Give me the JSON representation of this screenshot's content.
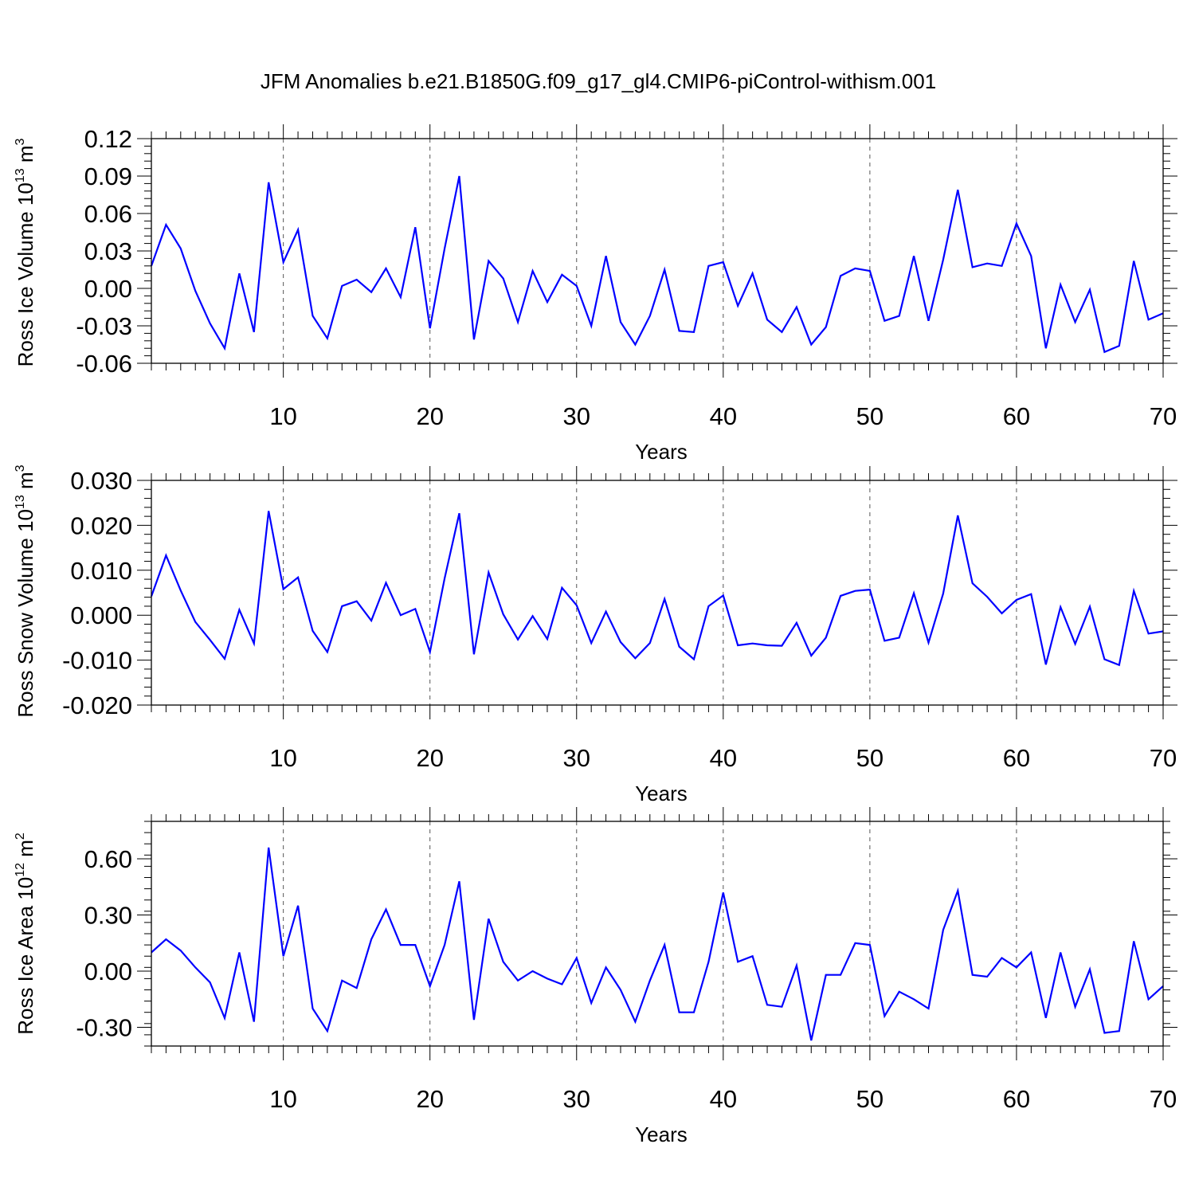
{
  "title": "JFM Anomalies b.e21.B1850G.f09_g17_gl4.CMIP6-piControl-withism.001",
  "line_color": "#0000ff",
  "chart_data": [
    {
      "type": "line",
      "ylabel": "Ross Ice Volume 10",
      "ylabel_exp": "13",
      "ylabel_unit": "m",
      "ylabel_unit_exp": "3",
      "xlabel": "Years",
      "xlim": [
        1,
        70
      ],
      "ylim": [
        -0.06,
        0.12
      ],
      "yticks": [
        -0.06,
        -0.03,
        0.0,
        0.03,
        0.06,
        0.09,
        0.12
      ],
      "yticklabels": [
        "-0.06",
        "-0.03",
        "0.00",
        "0.03",
        "0.06",
        "0.09",
        "0.12"
      ],
      "xticks": [
        10,
        20,
        30,
        40,
        50,
        60,
        70
      ],
      "xticklabels": [
        "10",
        "20",
        "30",
        "40",
        "50",
        "60",
        "70"
      ],
      "vgrid": [
        10,
        20,
        30,
        40,
        50,
        60
      ],
      "grid": "dashed vertical at major x ticks",
      "x": [
        1,
        2,
        3,
        4,
        5,
        6,
        7,
        8,
        9,
        10,
        11,
        12,
        13,
        14,
        15,
        16,
        17,
        18,
        19,
        20,
        21,
        22,
        23,
        24,
        25,
        26,
        27,
        28,
        29,
        30,
        31,
        32,
        33,
        34,
        35,
        36,
        37,
        38,
        39,
        40,
        41,
        42,
        43,
        44,
        45,
        46,
        47,
        48,
        49,
        50,
        51,
        52,
        53,
        54,
        55,
        56,
        57,
        58,
        59,
        60,
        61,
        62,
        63,
        64,
        65,
        66,
        67,
        68,
        69,
        70
      ],
      "values": [
        0.018,
        0.051,
        0.032,
        -0.002,
        -0.028,
        -0.048,
        0.012,
        -0.035,
        0.085,
        0.021,
        0.047,
        -0.022,
        -0.04,
        0.002,
        0.007,
        -0.003,
        0.016,
        -0.007,
        0.049,
        -0.032,
        0.032,
        0.09,
        -0.041,
        0.022,
        0.008,
        -0.027,
        0.014,
        -0.011,
        0.011,
        0.002,
        -0.03,
        0.026,
        -0.027,
        -0.045,
        -0.022,
        0.015,
        -0.034,
        -0.035,
        0.018,
        0.021,
        -0.014,
        0.012,
        -0.025,
        -0.035,
        -0.015,
        -0.045,
        -0.031,
        0.01,
        0.016,
        0.014,
        -0.026,
        -0.022,
        0.026,
        -0.026,
        0.023,
        0.079,
        0.017,
        0.02,
        0.018,
        0.052,
        0.026,
        -0.048,
        0.003,
        -0.027,
        -0.001,
        -0.051,
        -0.046,
        0.022,
        -0.025,
        -0.02
      ]
    },
    {
      "type": "line",
      "ylabel": "Ross Snow Volume 10",
      "ylabel_exp": "13",
      "ylabel_unit": "m",
      "ylabel_unit_exp": "3",
      "xlabel": "Years",
      "xlim": [
        1,
        70
      ],
      "ylim": [
        -0.02,
        0.03
      ],
      "yticks": [
        -0.02,
        -0.01,
        0.0,
        0.01,
        0.02,
        0.03
      ],
      "yticklabels": [
        "-0.020",
        "-0.010",
        "0.000",
        "0.010",
        "0.020",
        "0.030"
      ],
      "xticks": [
        10,
        20,
        30,
        40,
        50,
        60,
        70
      ],
      "xticklabels": [
        "10",
        "20",
        "30",
        "40",
        "50",
        "60",
        "70"
      ],
      "vgrid": [
        10,
        20,
        30,
        40,
        50,
        60
      ],
      "grid": "dashed vertical at major x ticks",
      "x": [
        1,
        2,
        3,
        4,
        5,
        6,
        7,
        8,
        9,
        10,
        11,
        12,
        13,
        14,
        15,
        16,
        17,
        18,
        19,
        20,
        21,
        22,
        23,
        24,
        25,
        26,
        27,
        28,
        29,
        30,
        31,
        32,
        33,
        34,
        35,
        36,
        37,
        38,
        39,
        40,
        41,
        42,
        43,
        44,
        45,
        46,
        47,
        48,
        49,
        50,
        51,
        52,
        53,
        54,
        55,
        56,
        57,
        58,
        59,
        60,
        61,
        62,
        63,
        64,
        65,
        66,
        67,
        68,
        69,
        70
      ],
      "values": [
        0.0042,
        0.0133,
        0.0055,
        -0.0015,
        -0.0055,
        -0.0097,
        0.0012,
        -0.0063,
        0.0232,
        0.0058,
        0.0084,
        -0.0035,
        -0.0082,
        0.002,
        0.0031,
        -0.0012,
        0.0072,
        0.0,
        0.0014,
        -0.0082,
        0.0082,
        0.0227,
        -0.0087,
        0.0095,
        0.0002,
        -0.0054,
        -0.0002,
        -0.0053,
        0.0061,
        0.0022,
        -0.0062,
        0.0008,
        -0.006,
        -0.0096,
        -0.0062,
        0.0036,
        -0.007,
        -0.0098,
        0.002,
        0.0044,
        -0.0067,
        -0.0063,
        -0.0067,
        -0.0068,
        -0.0017,
        -0.009,
        -0.005,
        0.0043,
        0.0054,
        0.0057,
        -0.0057,
        -0.005,
        0.0049,
        -0.0061,
        0.0048,
        0.0222,
        0.0071,
        0.0041,
        0.0004,
        0.0034,
        0.0047,
        -0.011,
        0.0018,
        -0.0064,
        0.0019,
        -0.0098,
        -0.0111,
        0.0054,
        -0.0041,
        -0.0036
      ]
    },
    {
      "type": "line",
      "ylabel": "Ross Ice Area 10",
      "ylabel_exp": "12",
      "ylabel_unit": "m",
      "ylabel_unit_exp": "2",
      "xlabel": "Years",
      "xlim": [
        1,
        70
      ],
      "ylim": [
        -0.4,
        0.8
      ],
      "yticks": [
        -0.3,
        0.0,
        0.3,
        0.6
      ],
      "yticklabels": [
        "-0.30",
        "0.00",
        "0.30",
        "0.60"
      ],
      "xticks": [
        10,
        20,
        30,
        40,
        50,
        60,
        70
      ],
      "xticklabels": [
        "10",
        "20",
        "30",
        "40",
        "50",
        "60",
        "70"
      ],
      "vgrid": [
        10,
        20,
        30,
        40,
        50,
        60
      ],
      "grid": "dashed vertical at major x ticks",
      "x": [
        1,
        2,
        3,
        4,
        5,
        6,
        7,
        8,
        9,
        10,
        11,
        12,
        13,
        14,
        15,
        16,
        17,
        18,
        19,
        20,
        21,
        22,
        23,
        24,
        25,
        26,
        27,
        28,
        29,
        30,
        31,
        32,
        33,
        34,
        35,
        36,
        37,
        38,
        39,
        40,
        41,
        42,
        43,
        44,
        45,
        46,
        47,
        48,
        49,
        50,
        51,
        52,
        53,
        54,
        55,
        56,
        57,
        58,
        59,
        60,
        61,
        62,
        63,
        64,
        65,
        66,
        67,
        68,
        69,
        70
      ],
      "values": [
        0.1,
        0.17,
        0.11,
        0.02,
        -0.06,
        -0.25,
        0.1,
        -0.27,
        0.66,
        0.08,
        0.35,
        -0.2,
        -0.32,
        -0.05,
        -0.09,
        0.17,
        0.33,
        0.14,
        0.14,
        -0.08,
        0.14,
        0.48,
        -0.26,
        0.28,
        0.05,
        -0.05,
        0.0,
        -0.04,
        -0.07,
        0.07,
        -0.17,
        0.02,
        -0.1,
        -0.27,
        -0.05,
        0.14,
        -0.22,
        -0.22,
        0.05,
        0.42,
        0.05,
        0.08,
        -0.18,
        -0.19,
        0.03,
        -0.37,
        -0.02,
        -0.02,
        0.15,
        0.14,
        -0.24,
        -0.11,
        -0.15,
        -0.2,
        0.22,
        0.43,
        -0.02,
        -0.03,
        0.07,
        0.02,
        0.1,
        -0.25,
        0.1,
        -0.19,
        0.01,
        -0.33,
        -0.32,
        0.16,
        -0.15,
        -0.08
      ]
    }
  ]
}
